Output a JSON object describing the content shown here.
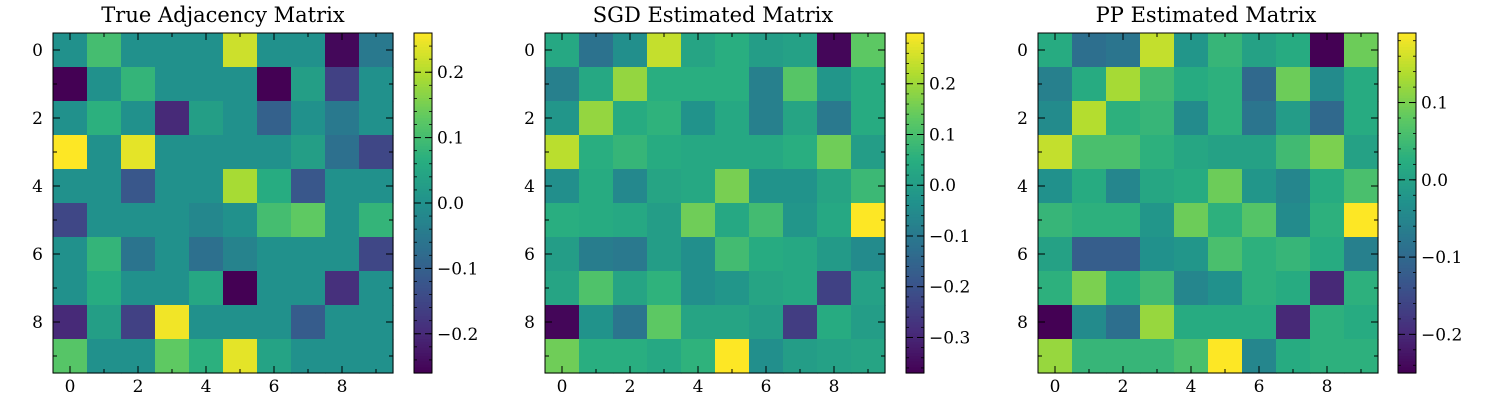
{
  "colormap": {
    "name": "viridis",
    "stops": [
      "#440154",
      "#472d7b",
      "#3b528b",
      "#2c728e",
      "#21918c",
      "#28ae80",
      "#5ec962",
      "#addc30",
      "#fde725"
    ]
  },
  "chart_data": [
    {
      "type": "heatmap",
      "title": "True Adjacency Matrix",
      "xticks": [
        0,
        2,
        4,
        6,
        8
      ],
      "yticks": [
        0,
        2,
        4,
        6,
        8
      ],
      "vmin": -0.26,
      "vmax": 0.26,
      "colorbar_ticks": [
        -0.2,
        -0.1,
        0.0,
        0.1,
        0.2
      ],
      "values": [
        [
          0.0,
          0.1,
          0.0,
          0.0,
          0.0,
          0.22,
          0.0,
          0.0,
          -0.25,
          -0.05
        ],
        [
          -0.26,
          0.0,
          0.08,
          0.0,
          0.0,
          0.0,
          -0.26,
          0.03,
          -0.16,
          0.0
        ],
        [
          0.0,
          0.07,
          0.0,
          -0.2,
          0.03,
          0.0,
          -0.1,
          0.0,
          -0.05,
          0.0
        ],
        [
          0.26,
          0.0,
          0.24,
          0.0,
          0.0,
          0.0,
          0.0,
          0.03,
          -0.07,
          -0.15
        ],
        [
          0.0,
          0.0,
          -0.12,
          0.0,
          0.0,
          0.19,
          0.06,
          -0.12,
          0.0,
          0.0
        ],
        [
          -0.15,
          0.0,
          0.0,
          0.0,
          -0.02,
          0.0,
          0.1,
          0.13,
          0.0,
          0.08
        ],
        [
          0.0,
          0.08,
          -0.06,
          0.0,
          -0.07,
          -0.03,
          0.0,
          0.0,
          0.0,
          -0.15
        ],
        [
          0.0,
          0.06,
          0.0,
          0.0,
          0.05,
          -0.26,
          0.0,
          0.0,
          -0.19,
          0.0
        ],
        [
          -0.2,
          0.03,
          -0.16,
          0.25,
          0.0,
          0.0,
          0.0,
          -0.11,
          0.0,
          0.0
        ],
        [
          0.12,
          0.0,
          0.0,
          0.13,
          0.07,
          0.24,
          0.04,
          0.0,
          0.0,
          0.0
        ]
      ]
    },
    {
      "type": "heatmap",
      "title": "SGD Estimated Matrix",
      "xticks": [
        0,
        2,
        4,
        6,
        8
      ],
      "yticks": [
        0,
        2,
        4,
        6,
        8
      ],
      "vmin": -0.37,
      "vmax": 0.3,
      "colorbar_ticks": [
        -0.3,
        -0.2,
        -0.1,
        0.0,
        0.1,
        0.2
      ],
      "values": [
        [
          0.03,
          -0.12,
          -0.04,
          0.24,
          0.02,
          0.05,
          0.0,
          0.01,
          -0.36,
          0.13
        ],
        [
          -0.08,
          0.03,
          0.19,
          0.05,
          0.05,
          0.05,
          -0.08,
          0.12,
          -0.02,
          0.04
        ],
        [
          -0.02,
          0.19,
          0.04,
          0.06,
          -0.03,
          0.03,
          -0.08,
          0.02,
          -0.1,
          0.04
        ],
        [
          0.23,
          0.05,
          0.07,
          0.04,
          0.03,
          0.03,
          0.03,
          0.05,
          0.15,
          0.0
        ],
        [
          -0.04,
          0.04,
          -0.06,
          0.02,
          0.03,
          0.16,
          -0.03,
          -0.03,
          0.02,
          0.08
        ],
        [
          0.05,
          0.04,
          0.03,
          0.0,
          0.15,
          0.03,
          0.09,
          -0.02,
          0.03,
          0.3
        ],
        [
          0.0,
          -0.09,
          -0.1,
          0.0,
          -0.04,
          0.09,
          0.04,
          0.03,
          -0.01,
          -0.05
        ],
        [
          0.02,
          0.11,
          0.02,
          0.06,
          -0.04,
          -0.02,
          0.02,
          0.03,
          -0.24,
          0.01
        ],
        [
          -0.36,
          -0.03,
          -0.11,
          0.13,
          0.02,
          0.02,
          0.0,
          -0.25,
          0.04,
          0.0
        ],
        [
          0.15,
          0.05,
          0.05,
          0.03,
          0.06,
          0.3,
          -0.04,
          0.0,
          0.01,
          0.02
        ]
      ]
    },
    {
      "type": "heatmap",
      "title": "PP Estimated Matrix",
      "xticks": [
        0,
        2,
        4,
        6,
        8
      ],
      "yticks": [
        0,
        2,
        4,
        6,
        8
      ],
      "vmin": -0.25,
      "vmax": 0.19,
      "colorbar_ticks": [
        -0.2,
        -0.1,
        0.0,
        0.1
      ],
      "values": [
        [
          0.02,
          -0.09,
          -0.08,
          0.15,
          -0.02,
          0.04,
          0.0,
          0.02,
          -0.25,
          0.09
        ],
        [
          -0.06,
          0.02,
          0.13,
          0.05,
          0.02,
          0.03,
          -0.1,
          0.09,
          -0.04,
          0.02
        ],
        [
          -0.04,
          0.14,
          0.03,
          0.04,
          -0.04,
          0.03,
          -0.08,
          -0.01,
          -0.1,
          0.02
        ],
        [
          0.15,
          0.06,
          0.06,
          0.03,
          0.01,
          0.0,
          0.0,
          0.05,
          0.1,
          0.0
        ],
        [
          -0.03,
          0.02,
          -0.05,
          0.01,
          0.02,
          0.09,
          -0.02,
          -0.05,
          0.02,
          0.06
        ],
        [
          0.04,
          0.03,
          0.03,
          -0.02,
          0.09,
          0.03,
          0.07,
          -0.04,
          0.03,
          0.19
        ],
        [
          0.0,
          -0.12,
          -0.12,
          -0.03,
          -0.02,
          0.06,
          0.03,
          0.04,
          0.02,
          -0.06
        ],
        [
          0.03,
          0.1,
          0.02,
          0.05,
          -0.05,
          -0.03,
          0.03,
          0.02,
          -0.2,
          0.03
        ],
        [
          -0.25,
          -0.04,
          -0.09,
          0.12,
          0.02,
          0.02,
          0.02,
          -0.2,
          0.03,
          0.02
        ],
        [
          0.12,
          0.04,
          0.04,
          0.04,
          0.06,
          0.19,
          -0.05,
          0.02,
          0.03,
          0.03
        ]
      ]
    }
  ]
}
